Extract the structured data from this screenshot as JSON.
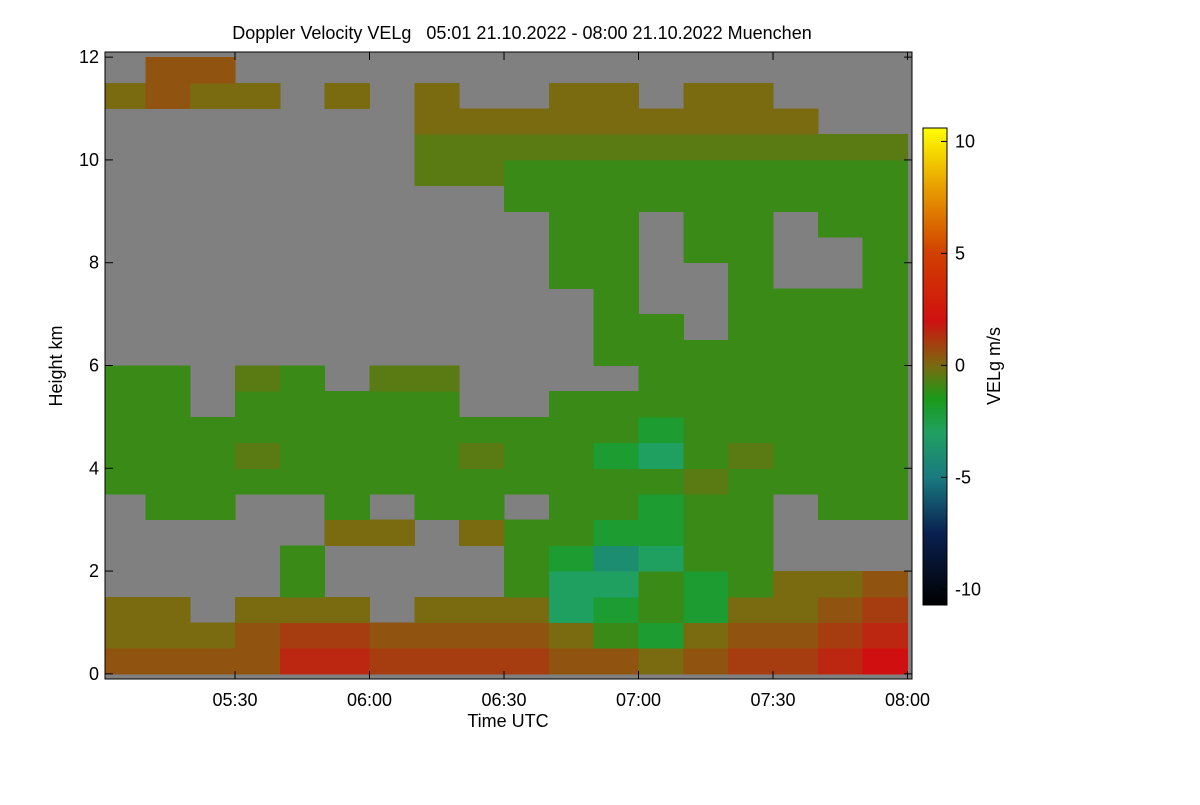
{
  "chart_data": {
    "type": "heatmap",
    "title": "Doppler Velocity VELg   05:01 21.10.2022 - 08:00 21.10.2022 Muenchen",
    "x_label": "Time UTC",
    "y_label": "Height km",
    "colorbar_label": "VELg m/s",
    "background_color": "#808080",
    "xlim": [
      301,
      481
    ],
    "xticks": [
      {
        "value": 330,
        "label": "05:30"
      },
      {
        "value": 360,
        "label": "06:00"
      },
      {
        "value": 390,
        "label": "06:30"
      },
      {
        "value": 420,
        "label": "07:00"
      },
      {
        "value": 450,
        "label": "07:30"
      },
      {
        "value": 480,
        "label": "08:00"
      }
    ],
    "ylim": [
      -0.1,
      12.1
    ],
    "yticks": [
      0,
      2,
      4,
      6,
      8,
      10,
      12
    ],
    "clim": [
      -10.7,
      10.6
    ],
    "cticks": [
      -10,
      -5,
      0,
      5,
      10
    ],
    "colormap": [
      {
        "value": -10.7,
        "color": "#000000"
      },
      {
        "value": -7.5,
        "color": "#0a2050"
      },
      {
        "value": -5,
        "color": "#1a7a80"
      },
      {
        "value": -3,
        "color": "#20a060"
      },
      {
        "value": -1.5,
        "color": "#1a9a1a"
      },
      {
        "value": 0,
        "color": "#7a6a10"
      },
      {
        "value": 2,
        "color": "#d01010"
      },
      {
        "value": 5,
        "color": "#d04000"
      },
      {
        "value": 8,
        "color": "#e8a000"
      },
      {
        "value": 10.6,
        "color": "#ffff00"
      }
    ],
    "xbins": [
      301,
      310,
      320,
      330,
      340,
      350,
      360,
      370,
      380,
      390,
      400,
      410,
      420,
      430,
      440,
      450,
      460,
      470,
      480
    ],
    "ybins": [
      0,
      0.5,
      1,
      1.5,
      2,
      2.5,
      3,
      3.5,
      4,
      4.5,
      5,
      5.5,
      6,
      6.5,
      7,
      7.5,
      8,
      8.5,
      9,
      9.5,
      10,
      10.5,
      11,
      11.5,
      12
    ],
    "values": [
      [
        0.5,
        0.5,
        0.5,
        0.5,
        1.5,
        1.5,
        1,
        1,
        1,
        1,
        0.5,
        0.5,
        0,
        0.5,
        1,
        1,
        1.5,
        2
      ],
      [
        0,
        0,
        0,
        0.5,
        1,
        1,
        0.5,
        0.5,
        0.5,
        0.5,
        0,
        -1,
        -2,
        0,
        0.5,
        0.5,
        1,
        1.5
      ],
      [
        0,
        0,
        null,
        0,
        0,
        0,
        null,
        0,
        0,
        0,
        -3,
        -2,
        -1,
        -2,
        0,
        0,
        0.5,
        1
      ],
      [
        null,
        null,
        null,
        null,
        -1,
        null,
        null,
        null,
        null,
        -1,
        -3,
        -3,
        -1,
        -2,
        -1,
        0,
        0,
        0.5
      ],
      [
        null,
        null,
        null,
        null,
        -1,
        null,
        null,
        null,
        null,
        -1,
        -2,
        -4,
        -3,
        -1,
        -1,
        null,
        null,
        null
      ],
      [
        null,
        null,
        null,
        null,
        null,
        0,
        0,
        null,
        0,
        -1,
        -1,
        -2,
        -2,
        -1,
        -1,
        null,
        null,
        null
      ],
      [
        null,
        -1,
        -1,
        null,
        null,
        -1,
        null,
        -1,
        -1,
        null,
        -1,
        -1,
        -2,
        -1,
        -1,
        null,
        -1,
        -1
      ],
      [
        -1,
        -1,
        -1,
        -1,
        -1,
        -1,
        -1,
        -1,
        -1,
        -1,
        -1,
        -1,
        -1,
        -0.5,
        -1,
        -1,
        -1,
        -1
      ],
      [
        -1,
        -1,
        -1,
        -0.5,
        -1,
        -1,
        -1,
        -1,
        -0.5,
        -1,
        -1,
        -2,
        -3,
        -1,
        -0.5,
        -1,
        -1,
        -1
      ],
      [
        -1,
        -1,
        -1,
        -1,
        -1,
        -1,
        -1,
        -1,
        -1,
        -1,
        -1,
        -1,
        -2,
        -1,
        -1,
        -1,
        -1,
        -1
      ],
      [
        -1,
        -1,
        null,
        -1,
        -1,
        -1,
        -1,
        -1,
        null,
        null,
        -1,
        -1,
        -1,
        -1,
        -1,
        -1,
        -1,
        -1
      ],
      [
        -1,
        -1,
        null,
        -0.5,
        -1,
        null,
        -0.5,
        -0.5,
        null,
        null,
        null,
        null,
        -1,
        -1,
        -1,
        -1,
        -1,
        -1
      ],
      [
        null,
        null,
        null,
        null,
        null,
        null,
        null,
        null,
        null,
        null,
        null,
        -1,
        -1,
        -1,
        -1,
        -1,
        -1,
        -1
      ],
      [
        null,
        null,
        null,
        null,
        null,
        null,
        null,
        null,
        null,
        null,
        null,
        -1,
        -1,
        null,
        -1,
        -1,
        -1,
        -1
      ],
      [
        null,
        null,
        null,
        null,
        null,
        null,
        null,
        null,
        null,
        null,
        null,
        -1,
        null,
        null,
        -1,
        -1,
        -1,
        -1
      ],
      [
        null,
        null,
        null,
        null,
        null,
        null,
        null,
        null,
        null,
        null,
        -1,
        -1,
        null,
        null,
        -1,
        null,
        null,
        -1
      ],
      [
        null,
        null,
        null,
        null,
        null,
        null,
        null,
        null,
        null,
        null,
        -1,
        -1,
        null,
        -1,
        -1,
        null,
        null,
        -1
      ],
      [
        null,
        null,
        null,
        null,
        null,
        null,
        null,
        null,
        null,
        null,
        -1,
        -1,
        null,
        -1,
        -1,
        null,
        -1,
        -1
      ],
      [
        null,
        null,
        null,
        null,
        null,
        null,
        null,
        null,
        null,
        -1,
        -1,
        -1,
        -1,
        -1,
        -1,
        -1,
        -1,
        -1
      ],
      [
        null,
        null,
        null,
        null,
        null,
        null,
        null,
        -0.5,
        -0.5,
        -1,
        -1,
        -1,
        -1,
        -1,
        -1,
        -1,
        -1,
        -1
      ],
      [
        null,
        null,
        null,
        null,
        null,
        null,
        null,
        -0.5,
        -0.5,
        -0.5,
        -0.5,
        -0.5,
        -0.5,
        -0.5,
        -0.5,
        -0.5,
        -0.5,
        -0.5
      ],
      [
        null,
        null,
        null,
        null,
        null,
        null,
        null,
        0,
        0,
        0,
        0,
        0,
        0,
        0,
        0,
        0,
        null,
        null
      ],
      [
        0,
        0.5,
        0,
        0,
        null,
        0,
        null,
        0,
        null,
        null,
        0,
        0,
        null,
        0,
        0,
        null,
        null,
        null
      ],
      [
        null,
        0.5,
        0.5,
        null,
        null,
        null,
        null,
        null,
        null,
        null,
        null,
        null,
        null,
        null,
        null,
        null,
        null,
        null
      ]
    ]
  }
}
